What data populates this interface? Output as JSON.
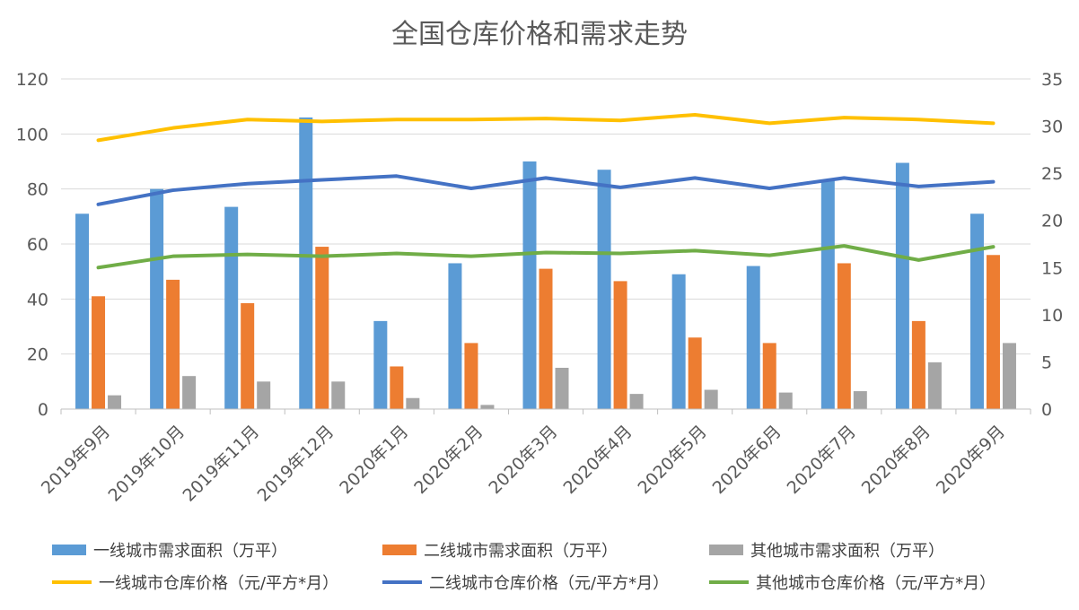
{
  "chart_data": {
    "type": "bar",
    "title": "全国仓库价格和需求走势",
    "categories": [
      "2019年9月",
      "2019年10月",
      "2019年11月",
      "2019年12月",
      "2020年1月",
      "2020年2月",
      "2020年3月",
      "2020年4月",
      "2020年5月",
      "2020年6月",
      "2020年7月",
      "2020年8月",
      "2020年9月"
    ],
    "y_left": {
      "range": [
        0,
        120
      ],
      "ticks": [
        "0",
        "20",
        "40",
        "60",
        "80",
        "100",
        "120"
      ]
    },
    "y_right": {
      "range": [
        0,
        35
      ],
      "ticks": [
        "0",
        "5",
        "10",
        "15",
        "20",
        "25",
        "30",
        "35"
      ]
    },
    "grid": "horizontal",
    "legend_placement": "bottom",
    "bar_series": [
      {
        "name": "一线城市需求面积（万平）",
        "color": "#5B9BD5",
        "axis": "left",
        "values": [
          71,
          80,
          73.5,
          106,
          32,
          53,
          90,
          87,
          49,
          52,
          83,
          89.5,
          71
        ]
      },
      {
        "name": "二线城市需求面积（万平）",
        "color": "#ED7D31",
        "axis": "left",
        "values": [
          41,
          47,
          38.5,
          59,
          15.5,
          24,
          51,
          46.5,
          26,
          24,
          53,
          32,
          56
        ]
      },
      {
        "name": "其他城市需求面积（万平）",
        "color": "#A5A5A5",
        "axis": "left",
        "values": [
          5,
          12,
          10,
          10,
          4,
          1.5,
          15,
          5.5,
          7,
          6,
          6.5,
          17,
          24
        ]
      }
    ],
    "line_series": [
      {
        "name": "一线城市仓库价格（元/平方*月）",
        "color": "#FFC000",
        "axis": "right",
        "values": [
          28.5,
          29.8,
          30.7,
          30.5,
          30.7,
          30.7,
          30.8,
          30.6,
          31.2,
          30.3,
          30.9,
          30.7,
          30.3
        ]
      },
      {
        "name": "二线城市仓库价格（元/平方*月）",
        "color": "#4472C4",
        "axis": "right",
        "values": [
          21.7,
          23.2,
          23.9,
          24.3,
          24.7,
          23.4,
          24.5,
          23.5,
          24.5,
          23.4,
          24.5,
          23.6,
          24.1
        ]
      },
      {
        "name": "其他城市仓库价格（元/平方*月）",
        "color": "#70AD47",
        "axis": "right",
        "values": [
          15.0,
          16.2,
          16.4,
          16.2,
          16.5,
          16.2,
          16.6,
          16.5,
          16.8,
          16.3,
          17.3,
          15.8,
          17.2
        ]
      }
    ]
  }
}
